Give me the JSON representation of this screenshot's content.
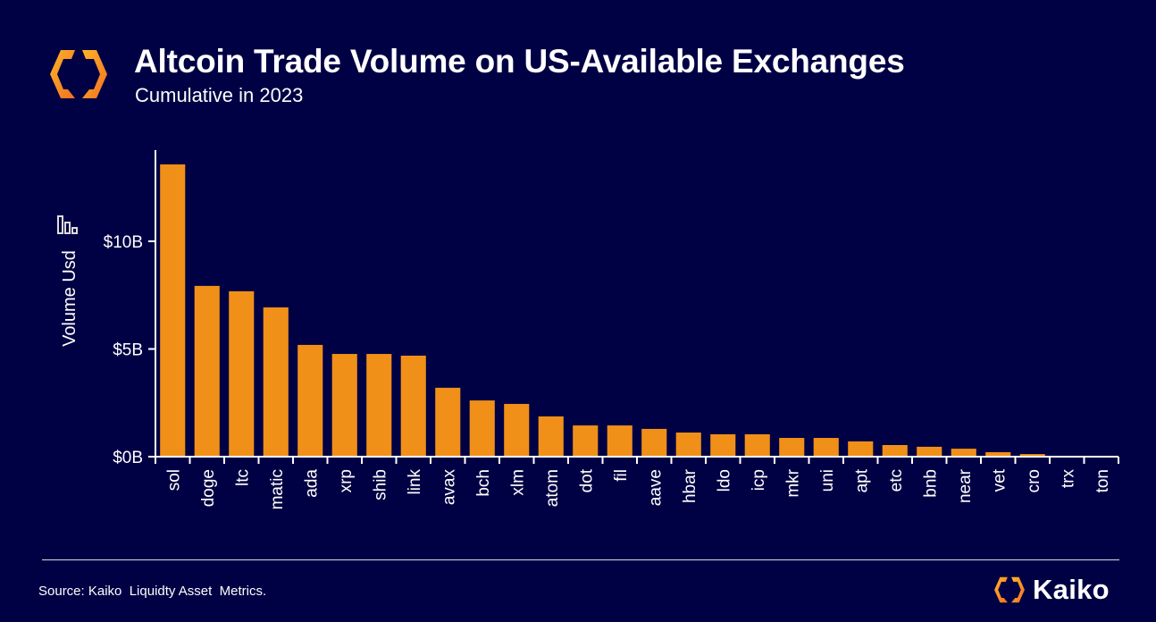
{
  "header": {
    "title": "Altcoin Trade Volume on US-Available Exchanges",
    "subtitle": "Cumulative in 2023",
    "logo_icon": "kaiko-logo-icon"
  },
  "footer": {
    "source": "Source: Kaiko  Liquidty Asset  Metrics.",
    "brand": "Kaiko"
  },
  "colors": {
    "background": "#000044",
    "bar": "#F09019",
    "axis": "#ffffff",
    "text": "#ffffff"
  },
  "chart_data": {
    "type": "bar",
    "title": "Altcoin Trade Volume on US-Available Exchanges",
    "subtitle": "Cumulative in 2023",
    "xlabel": "",
    "ylabel": "Volume Usd",
    "ylabel_icon": "bar-chart-sort-icon",
    "ylim": [
      0,
      14.2
    ],
    "y_unit": "billion USD",
    "yticks": [
      {
        "value": 0,
        "label": "$0B"
      },
      {
        "value": 5,
        "label": "$5B"
      },
      {
        "value": 10,
        "label": "$10B"
      }
    ],
    "grid": false,
    "legend": "none",
    "categories": [
      "sol",
      "doge",
      "ltc",
      "matic",
      "ada",
      "xrp",
      "shib",
      "link",
      "avax",
      "bch",
      "xlm",
      "atom",
      "dot",
      "fil",
      "aave",
      "hbar",
      "ldo",
      "icp",
      "mkr",
      "uni",
      "apt",
      "etc",
      "bnb",
      "near",
      "vet",
      "cro",
      "trx",
      "ton"
    ],
    "values": [
      13.57,
      7.93,
      7.68,
      6.93,
      5.19,
      4.77,
      4.77,
      4.69,
      3.2,
      2.61,
      2.45,
      1.87,
      1.45,
      1.45,
      1.29,
      1.12,
      1.04,
      1.04,
      0.87,
      0.87,
      0.71,
      0.54,
      0.46,
      0.37,
      0.21,
      0.12,
      0.04,
      0.0
    ]
  }
}
